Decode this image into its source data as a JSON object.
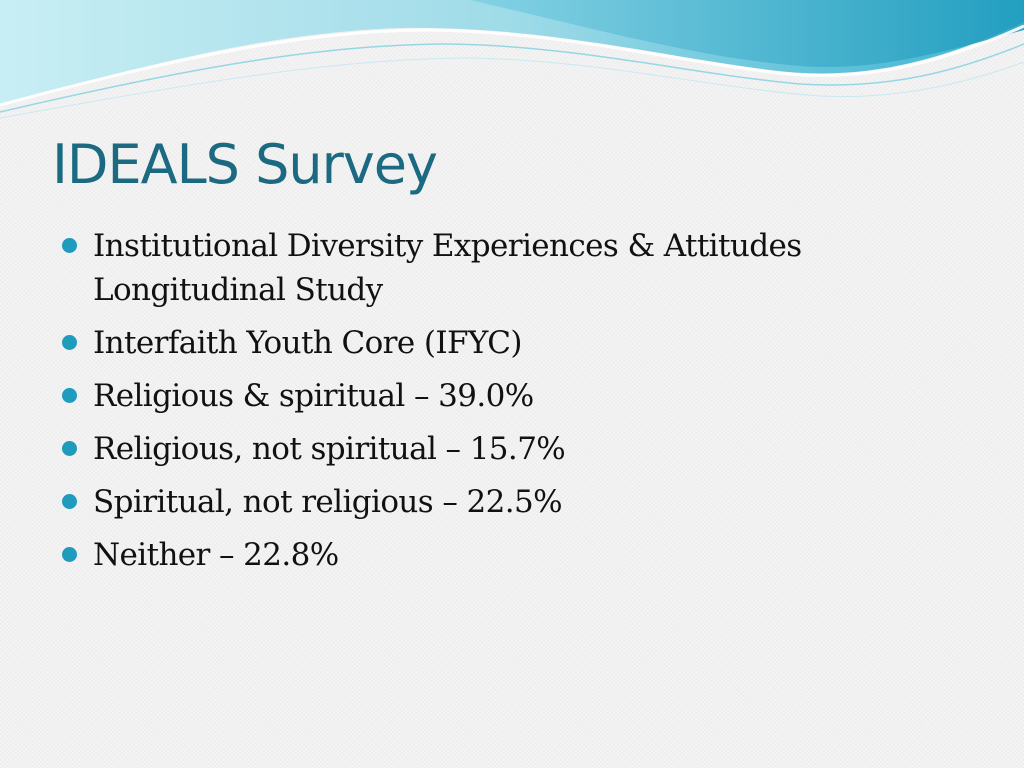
{
  "slide": {
    "title": "IDEALS Survey",
    "bullets": [
      {
        "text": "Institutional Diversity Experiences & Attitudes Longitudinal Study"
      },
      {
        "text": "Interfaith Youth Core (IFYC)"
      },
      {
        "text": "Religious & spiritual – 39.0%"
      },
      {
        "text": "Religious, not spiritual – 15.7%"
      },
      {
        "text": "Spiritual, not religious – 22.5%"
      },
      {
        "text": "Neither – 22.8%"
      }
    ]
  },
  "colors": {
    "title": "#1c6a82",
    "bullet": "#1e9bbd",
    "wave_light": "#a9e2ec",
    "wave_dark": "#29a9c9",
    "background": "#f4f4f4"
  }
}
